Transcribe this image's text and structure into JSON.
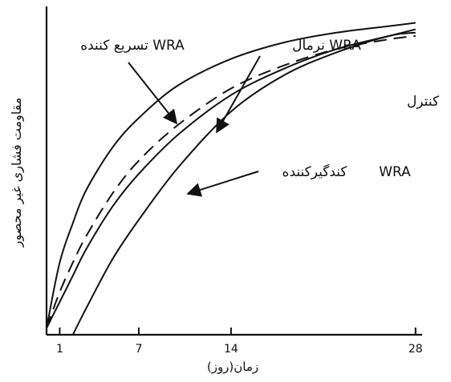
{
  "chart_data": {
    "type": "line",
    "title": "",
    "xlabel": "زمان(روز)",
    "ylabel": "مقاومت فشاری غیر محصور",
    "x_ticks": [
      1,
      7,
      14,
      28
    ],
    "xlim": [
      0,
      28.5
    ],
    "ylim": [
      0,
      1
    ],
    "grid": false,
    "series": [
      {
        "name": "WRA تسریع کننده",
        "style": "solid",
        "x": [
          0,
          1,
          2,
          3,
          5,
          7,
          10,
          14,
          18,
          22,
          26,
          28
        ],
        "y": [
          0.02,
          0.22,
          0.34,
          0.44,
          0.57,
          0.66,
          0.76,
          0.84,
          0.89,
          0.92,
          0.94,
          0.95
        ]
      },
      {
        "name": "WRA نرمال",
        "style": "dashed",
        "x": [
          0,
          1,
          2,
          3,
          5,
          7,
          10,
          14,
          18,
          22,
          26,
          28
        ],
        "y": [
          0.02,
          0.13,
          0.22,
          0.3,
          0.43,
          0.53,
          0.64,
          0.75,
          0.82,
          0.87,
          0.9,
          0.91
        ]
      },
      {
        "name": "کنترل",
        "style": "solid",
        "x": [
          0,
          1,
          2,
          3,
          5,
          7,
          10,
          14,
          18,
          22,
          26,
          28
        ],
        "y": [
          0.02,
          0.1,
          0.18,
          0.26,
          0.39,
          0.49,
          0.61,
          0.73,
          0.81,
          0.87,
          0.91,
          0.93
        ]
      },
      {
        "name": "WRA کندگیرکننده",
        "style": "solid",
        "x": [
          2,
          3,
          5,
          7,
          10,
          14,
          18,
          22,
          26,
          28
        ],
        "y": [
          0.0,
          0.08,
          0.23,
          0.35,
          0.51,
          0.68,
          0.79,
          0.86,
          0.91,
          0.92
        ]
      }
    ],
    "annotations": {
      "accel": "WRA تسریع کننده",
      "normal": "WRA نرمال",
      "control": "کنترل",
      "retard_name": "کندگیرکننده",
      "retard_wra": "WRA"
    }
  }
}
